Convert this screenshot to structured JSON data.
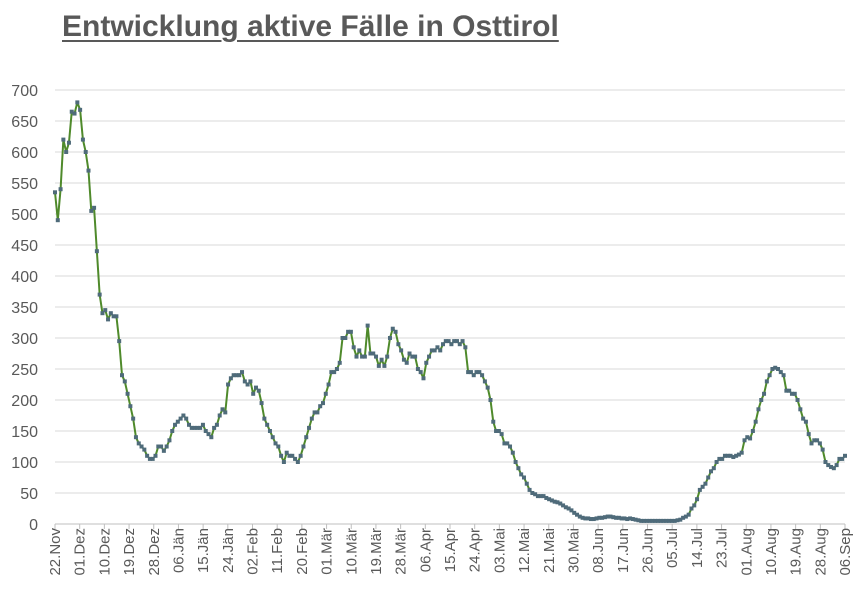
{
  "chart_data": {
    "type": "line",
    "title": "Entwicklung aktive Fälle in Osttirol",
    "xlabel": "",
    "ylabel": "",
    "ylim": [
      0,
      700
    ],
    "yticks": [
      0,
      50,
      100,
      150,
      200,
      250,
      300,
      350,
      400,
      450,
      500,
      550,
      600,
      650,
      700
    ],
    "grid": true,
    "legend": "none",
    "x_tick_labels": [
      "22.Nov",
      "01.Dez",
      "10.Dez",
      "19.Dez",
      "28.Dez",
      "06.Jän",
      "15.Jän",
      "24.Jän",
      "02.Feb",
      "11.Feb",
      "20.Feb",
      "01.Mär",
      "10.Mär",
      "19.Mär",
      "28.Mär",
      "06.Apr",
      "15.Apr",
      "24.Apr",
      "03.Mai",
      "12.Mai",
      "21.Mai",
      "30.Mai",
      "08.Jun",
      "17.Jun",
      "26.Jun",
      "05.Jul",
      "14.Jul",
      "23.Jul",
      "01.Aug",
      "10.Aug",
      "19.Aug",
      "28.Aug",
      "06.Sep"
    ],
    "colors": {
      "line": "#4f8a2b",
      "marker": "#4f6b7a",
      "grid": "#d9d9d9",
      "text": "#595959"
    },
    "series": [
      {
        "values": [
          535,
          490,
          540,
          620,
          600,
          615,
          665,
          662,
          680,
          668,
          620,
          600,
          570,
          505,
          510,
          440,
          370,
          340,
          345,
          330,
          340,
          335,
          335,
          295,
          240,
          230,
          210,
          190,
          170,
          140,
          130,
          125,
          120,
          110,
          105,
          105,
          110,
          125,
          125,
          118,
          125,
          135,
          150,
          160,
          165,
          170,
          175,
          170,
          160,
          155,
          155,
          155,
          155,
          160,
          150,
          145,
          140,
          155,
          160,
          175,
          185,
          180,
          225,
          235,
          240,
          240,
          240,
          245,
          230,
          225,
          230,
          210,
          220,
          215,
          195,
          170,
          160,
          150,
          140,
          130,
          125,
          110,
          100,
          115,
          110,
          110,
          105,
          100,
          110,
          125,
          140,
          155,
          170,
          180,
          180,
          190,
          195,
          210,
          225,
          245,
          245,
          250,
          260,
          300,
          300,
          310,
          310,
          285,
          270,
          280,
          270,
          270,
          320,
          275,
          275,
          270,
          255,
          265,
          255,
          270,
          300,
          315,
          310,
          290,
          280,
          265,
          260,
          275,
          270,
          270,
          250,
          245,
          235,
          260,
          270,
          280,
          280,
          285,
          280,
          290,
          295,
          295,
          290,
          295,
          295,
          290,
          295,
          285,
          245,
          245,
          240,
          245,
          245,
          240,
          230,
          220,
          200,
          165,
          150,
          150,
          145,
          130,
          130,
          125,
          115,
          100,
          90,
          80,
          75,
          65,
          55,
          50,
          48,
          45,
          45,
          45,
          42,
          40,
          38,
          36,
          35,
          33,
          30,
          27,
          25,
          22,
          18,
          15,
          12,
          10,
          9,
          9,
          8,
          8,
          9,
          10,
          10,
          11,
          12,
          12,
          11,
          10,
          10,
          9,
          9,
          8,
          9,
          8,
          7,
          6,
          5,
          5,
          5,
          5,
          5,
          5,
          5,
          5,
          5,
          5,
          5,
          5,
          5,
          6,
          7,
          10,
          12,
          15,
          25,
          30,
          40,
          55,
          60,
          65,
          75,
          85,
          90,
          100,
          105,
          105,
          110,
          110,
          110,
          108,
          110,
          112,
          115,
          135,
          140,
          138,
          150,
          165,
          185,
          200,
          210,
          230,
          240,
          250,
          252,
          250,
          245,
          240,
          215,
          215,
          210,
          210,
          200,
          185,
          170,
          165,
          145,
          130,
          135,
          135,
          130,
          120,
          100,
          95,
          92,
          90,
          95,
          105,
          105,
          110
        ]
      }
    ]
  }
}
